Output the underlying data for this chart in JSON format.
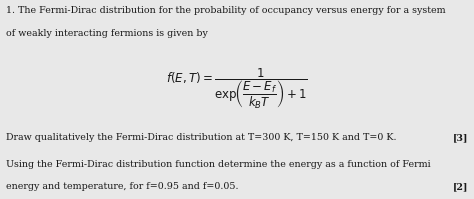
{
  "background_color": "#e8e8e8",
  "text_color": "#1a1a1a",
  "line1": "1. The Fermi-Dirac distribution for the probability of occupancy versus energy for a system",
  "line2": "of weakly interacting fermions is given by",
  "equation": "$f(E,T) = \\dfrac{1}{\\mathrm{exp}\\!\\left(\\dfrac{E - E_f}{k_B T}\\right) + 1}$",
  "draw_line": "Draw qualitatively the Fermi-Dirac distribution at T=300 K, T=150 K and T=0 K.",
  "draw_mark": "[3]",
  "using_line1": "Using the Fermi-Dirac distribution function determine the energy as a function of Fermi",
  "using_line2": "energy and temperature, for f=0.95 and f=0.05.",
  "using_mark": "[2]",
  "fig_width": 4.74,
  "fig_height": 1.99,
  "dpi": 100,
  "body_fontsize": 6.8,
  "eq_fontsize": 8.5
}
